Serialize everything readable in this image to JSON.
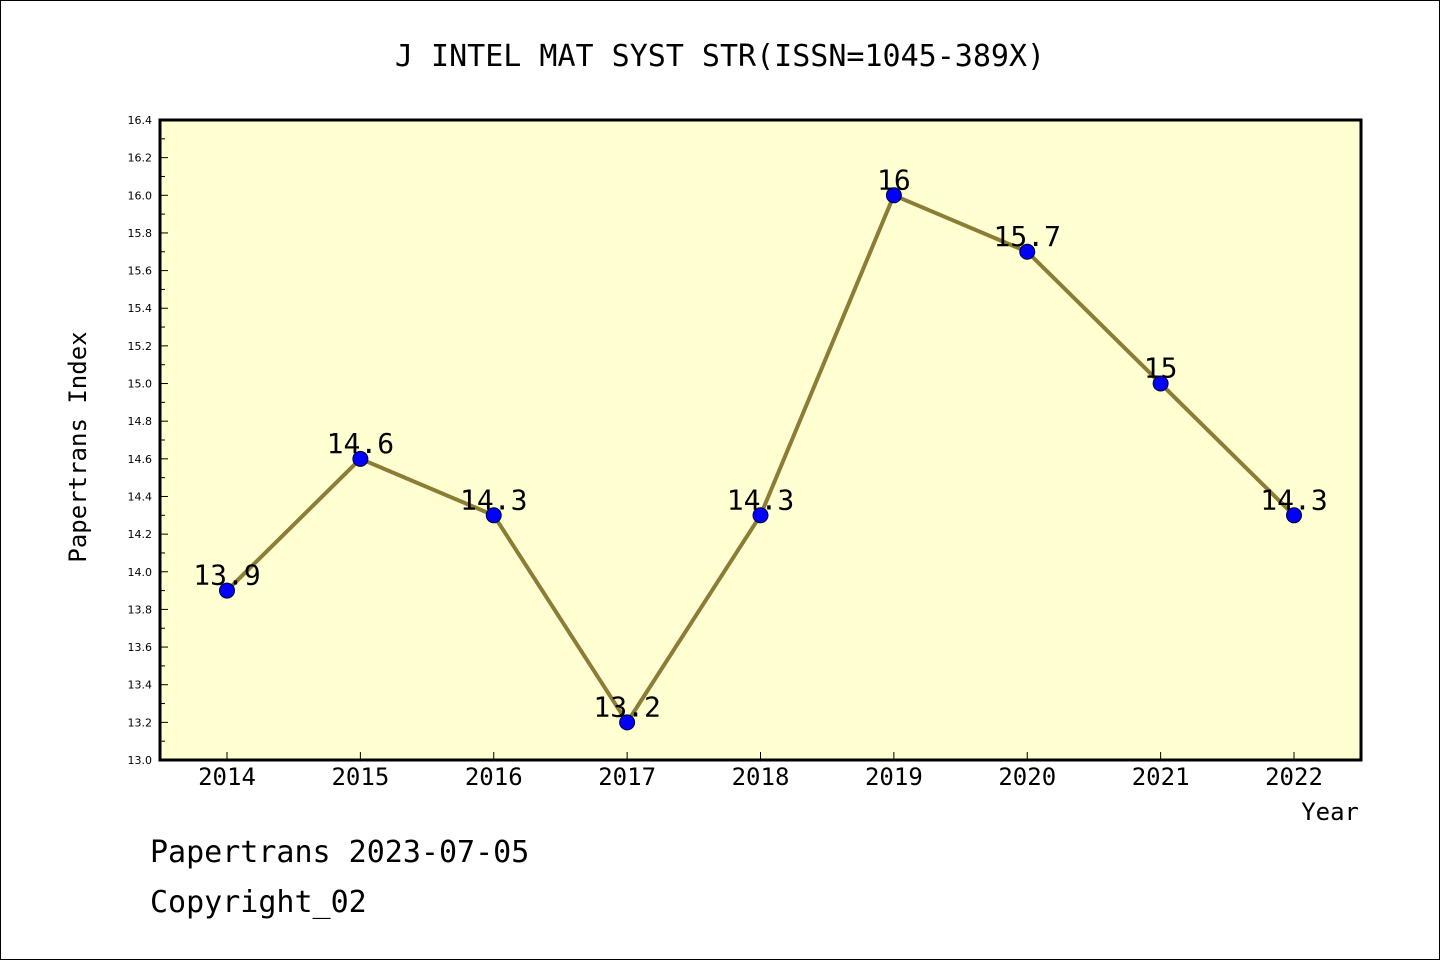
{
  "chart_data": {
    "type": "line",
    "title": "J INTEL MAT SYST STR(ISSN=1045-389X)",
    "xlabel": "Year",
    "ylabel": "Papertrans Index",
    "categories": [
      "2014",
      "2015",
      "2016",
      "2017",
      "2018",
      "2019",
      "2020",
      "2021",
      "2022"
    ],
    "series": [
      {
        "values": [
          13.9,
          14.6,
          14.3,
          13.2,
          14.3,
          16.0,
          15.7,
          15.0,
          14.3
        ]
      }
    ],
    "data_labels": [
      "13.9",
      "14.6",
      "14.3",
      "13.2",
      "14.3",
      "16",
      "15.7",
      "15",
      "14.3"
    ],
    "ylim": [
      13.0,
      16.4
    ],
    "yticks": [
      "13.0",
      "13.2",
      "13.4",
      "13.6",
      "13.8",
      "14.0",
      "14.2",
      "14.4",
      "14.6",
      "14.8",
      "15.0",
      "15.2",
      "15.4",
      "15.6",
      "15.8",
      "16.0",
      "16.2",
      "16.4"
    ],
    "grid": false,
    "colors": {
      "plot_background": "#ffffd2",
      "line": "#8b7d36",
      "marker": "#0000ff"
    }
  },
  "footer": {
    "date_line": "Papertrans 2023-07-05",
    "copyright_line": "Copyright_02"
  }
}
